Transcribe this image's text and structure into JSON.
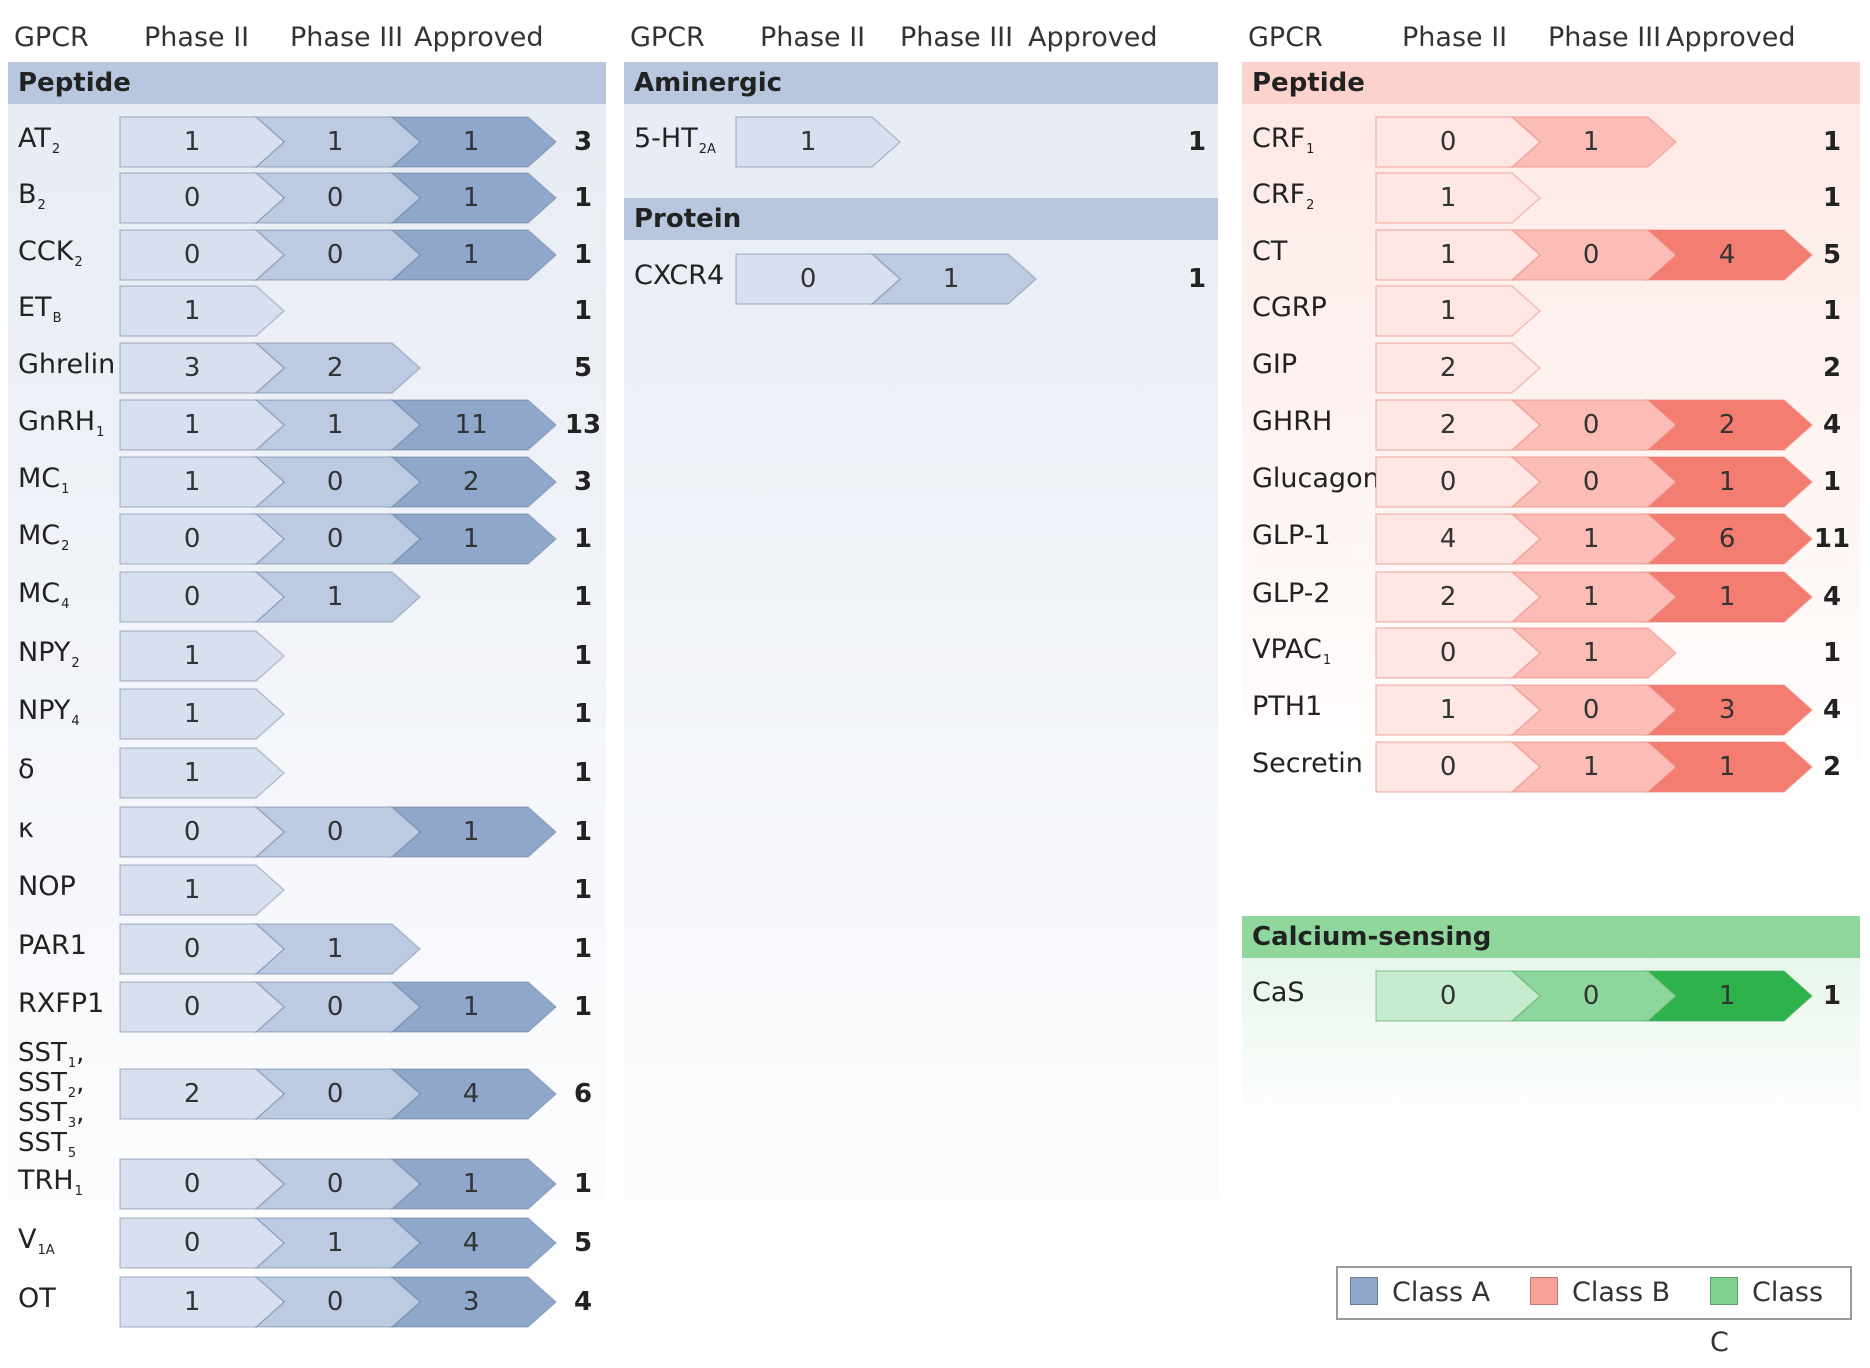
{
  "headers": {
    "gpcr": "GPCR",
    "phase2": "Phase II",
    "phase3": "Phase III",
    "approved": "Approved"
  },
  "colors": {
    "classA": [
      "#d8dfee",
      "#bccbe1",
      "#8ea7cb"
    ],
    "classB": [
      "#fde6e3",
      "#fbbdb5",
      "#f47d72"
    ],
    "classC": [
      "#c7ebcf",
      "#8dd69d",
      "#2fb24c"
    ],
    "classA_section": "#b9c7de",
    "classB_section": "#fcd2cc",
    "classC_section": "#8fd79d"
  },
  "columns": [
    {
      "class": "A",
      "sections": [
        {
          "title": "Peptide",
          "rows": [
            {
              "label": "AT",
              "sub": "2",
              "values": [
                1,
                1,
                1
              ],
              "total": 3
            },
            {
              "label": "B",
              "sub": "2",
              "values": [
                0,
                0,
                1
              ],
              "total": 1
            },
            {
              "label": "CCK",
              "sub": "2",
              "values": [
                0,
                0,
                1
              ],
              "total": 1
            },
            {
              "label": "ET",
              "sub": "B",
              "values": [
                1
              ],
              "total": 1
            },
            {
              "label": "Ghrelin",
              "sub": "",
              "values": [
                3,
                2
              ],
              "total": 5
            },
            {
              "label": "GnRH",
              "sub": "1",
              "values": [
                1,
                1,
                11
              ],
              "total": 13
            },
            {
              "label": "MC",
              "sub": "1",
              "values": [
                1,
                0,
                2
              ],
              "total": 3
            },
            {
              "label": "MC",
              "sub": "2",
              "values": [
                0,
                0,
                1
              ],
              "total": 1
            },
            {
              "label": "MC",
              "sub": "4",
              "values": [
                0,
                1
              ],
              "total": 1
            },
            {
              "label": "NPY",
              "sub": "2",
              "values": [
                1
              ],
              "total": 1
            },
            {
              "label": "NPY",
              "sub": "4",
              "values": [
                1
              ],
              "total": 1
            },
            {
              "label": "δ",
              "sub": "",
              "values": [
                1
              ],
              "total": 1
            },
            {
              "label": "κ",
              "sub": "",
              "values": [
                0,
                0,
                1
              ],
              "total": 1
            },
            {
              "label": "NOP",
              "sub": "",
              "values": [
                1
              ],
              "total": 1
            },
            {
              "label": "PAR1",
              "sub": "",
              "values": [
                0,
                1
              ],
              "total": 1
            },
            {
              "label": "RXFP1",
              "sub": "",
              "values": [
                0,
                0,
                1
              ],
              "total": 1
            },
            {
              "label": "SST",
              "multi": [
                [
                  "SST",
                  "1",
                  ","
                ],
                [
                  "SST",
                  "2",
                  ","
                ],
                [
                  "SST",
                  "3",
                  ","
                ],
                [
                  "SST",
                  "5",
                  ""
                ]
              ],
              "values": [
                2,
                0,
                4
              ],
              "total": 6
            },
            {
              "label": "TRH",
              "sub": "1",
              "values": [
                0,
                0,
                1
              ],
              "total": 1
            },
            {
              "label": "V",
              "sub": "1A",
              "values": [
                0,
                1,
                4
              ],
              "total": 5
            },
            {
              "label": "OT",
              "sub": "",
              "values": [
                1,
                0,
                3
              ],
              "total": 4
            }
          ]
        }
      ]
    },
    {
      "class": "A",
      "sections": [
        {
          "title": "Aminergic",
          "rows": [
            {
              "label": "5-HT",
              "sub": "2A",
              "values": [
                1
              ],
              "total": 1
            }
          ]
        },
        {
          "title": "Protein",
          "rows": [
            {
              "label": "CXCR4",
              "sub": "",
              "values": [
                0,
                1
              ],
              "total": 1
            }
          ]
        }
      ]
    },
    {
      "class": "B",
      "sections": [
        {
          "title": "Peptide",
          "rows": [
            {
              "label": "CRF",
              "sub": "1",
              "values": [
                0,
                1
              ],
              "total": 1
            },
            {
              "label": "CRF",
              "sub": "2",
              "values": [
                1
              ],
              "total": 1
            },
            {
              "label": "CT",
              "sub": "",
              "values": [
                1,
                0,
                4
              ],
              "total": 5
            },
            {
              "label": "CGRP",
              "sub": "",
              "values": [
                1
              ],
              "total": 1
            },
            {
              "label": "GIP",
              "sub": "",
              "values": [
                2
              ],
              "total": 2
            },
            {
              "label": "GHRH",
              "sub": "",
              "values": [
                2,
                0,
                2
              ],
              "total": 4
            },
            {
              "label": "Glucagon",
              "sub": "",
              "values": [
                0,
                0,
                1
              ],
              "total": 1
            },
            {
              "label": "GLP-1",
              "sub": "",
              "values": [
                4,
                1,
                6
              ],
              "total": 11
            },
            {
              "label": "GLP-2",
              "sub": "",
              "values": [
                2,
                1,
                1
              ],
              "total": 4
            },
            {
              "label": "VPAC",
              "sub": "1",
              "values": [
                0,
                1
              ],
              "total": 1
            },
            {
              "label": "PTH1",
              "sub": "",
              "values": [
                1,
                0,
                3
              ],
              "total": 4
            },
            {
              "label": "Secretin",
              "sub": "",
              "values": [
                0,
                1,
                1
              ],
              "total": 2
            }
          ]
        },
        {
          "title": "Calcium-sensing",
          "class": "C",
          "rows": [
            {
              "label": "CaS",
              "sub": "",
              "values": [
                0,
                0,
                1
              ],
              "total": 1
            }
          ]
        }
      ]
    }
  ],
  "legend": [
    {
      "label": "Class A",
      "color": "#8ea7cb"
    },
    {
      "label": "Class B",
      "color": "#f7a299"
    },
    {
      "label": "Class C",
      "color": "#7fd18f"
    }
  ]
}
